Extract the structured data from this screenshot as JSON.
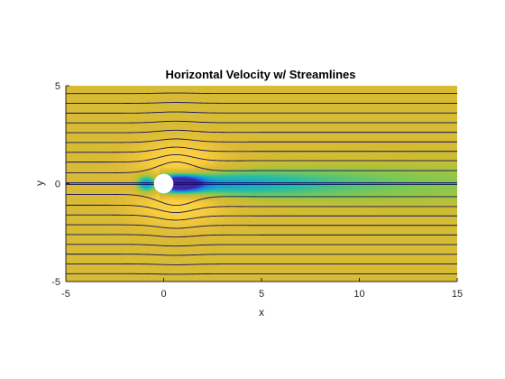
{
  "chart_data": {
    "type": "heatmap",
    "title": "Horizontal Velocity w/ Streamlines",
    "xlabel": "x",
    "ylabel": "y",
    "xlim": [
      -5,
      15
    ],
    "ylim": [
      -5,
      5
    ],
    "x_ticks": [
      -5,
      0,
      5,
      10,
      15
    ],
    "y_ticks": [
      -5,
      0,
      5
    ],
    "x_tick_labels": [
      "-5",
      "0",
      "5",
      "10",
      "15"
    ],
    "y_tick_labels": [
      "-5",
      "0",
      "5"
    ],
    "field": "horizontal velocity",
    "colormap": "parula",
    "obstacle": {
      "shape": "circle",
      "center": [
        0,
        0
      ],
      "radius": 0.5,
      "color": "#ffffff"
    },
    "streamline_start_y": [
      -4.6,
      -4.1,
      -3.6,
      -3.1,
      -2.6,
      -2.1,
      -1.6,
      -1.1,
      -0.55,
      -0.04,
      0.04,
      0.55,
      1.1,
      1.6,
      2.1,
      2.6,
      3.1,
      3.6,
      4.1,
      4.6
    ],
    "streamline_color": "#101060",
    "grid": false,
    "colors": {
      "freestream": "#d8b933",
      "speedup": "#fbd74a",
      "wake": "#3cbf9a",
      "stagnation": "#3a1ad0"
    }
  }
}
